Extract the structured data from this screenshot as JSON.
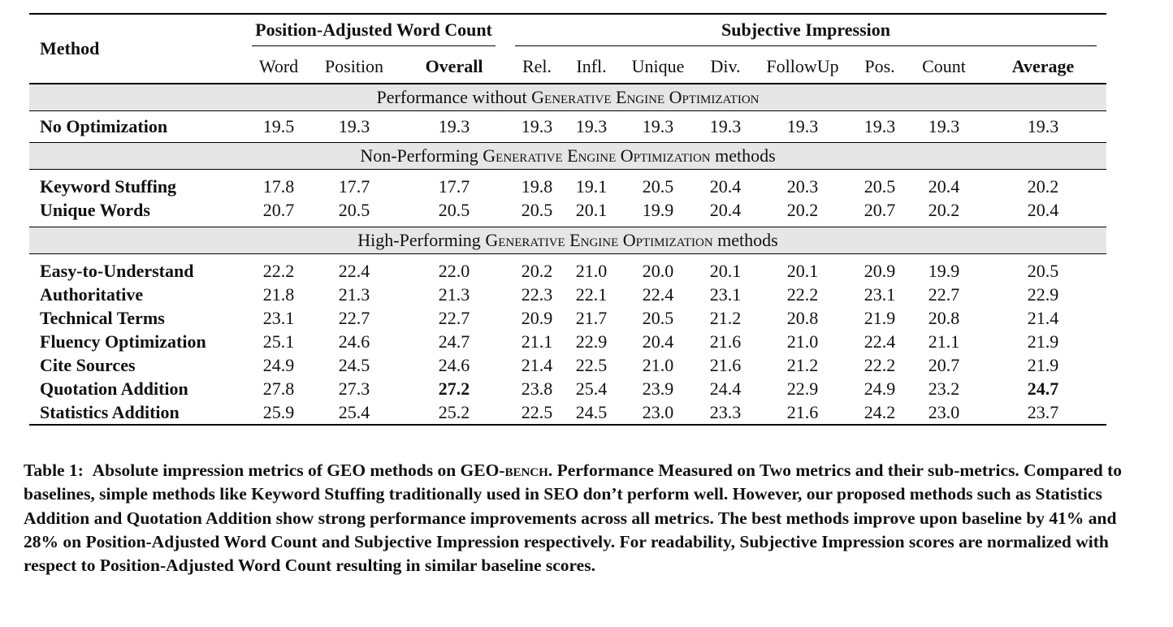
{
  "table": {
    "method_header": "Method",
    "groups": {
      "pawc": "Position-Adjusted Word Count",
      "si": "Subjective Impression"
    },
    "columns": [
      "Word",
      "Position",
      "Overall",
      "Rel.",
      "Infl.",
      "Unique",
      "Div.",
      "FollowUp",
      "Pos.",
      "Count",
      "Average"
    ],
    "sections": [
      {
        "pre": "Performance without ",
        "geo": "Generative Engine Optimization",
        "post": "",
        "rows": [
          {
            "method": "No Optimization",
            "values": [
              "19.5",
              "19.3",
              "19.3",
              "19.3",
              "19.3",
              "19.3",
              "19.3",
              "19.3",
              "19.3",
              "19.3",
              "19.3"
            ]
          }
        ]
      },
      {
        "pre": "Non-Performing ",
        "geo": "Generative Engine Optimization",
        "post": " methods",
        "rows": [
          {
            "method": "Keyword Stuffing",
            "values": [
              "17.8",
              "17.7",
              "17.7",
              "19.8",
              "19.1",
              "20.5",
              "20.4",
              "20.3",
              "20.5",
              "20.4",
              "20.2"
            ]
          },
          {
            "method": "Unique Words",
            "values": [
              "20.7",
              "20.5",
              "20.5",
              "20.5",
              "20.1",
              "19.9",
              "20.4",
              "20.2",
              "20.7",
              "20.2",
              "20.4"
            ]
          }
        ]
      },
      {
        "pre": "High-Performing ",
        "geo": "Generative Engine Optimization",
        "post": " methods",
        "rows": [
          {
            "method": "Easy-to-Understand",
            "values": [
              "22.2",
              "22.4",
              "22.0",
              "20.2",
              "21.0",
              "20.0",
              "20.1",
              "20.1",
              "20.9",
              "19.9",
              "20.5"
            ]
          },
          {
            "method": "Authoritative",
            "values": [
              "21.8",
              "21.3",
              "21.3",
              "22.3",
              "22.1",
              "22.4",
              "23.1",
              "22.2",
              "23.1",
              "22.7",
              "22.9"
            ]
          },
          {
            "method": "Technical Terms",
            "values": [
              "23.1",
              "22.7",
              "22.7",
              "20.9",
              "21.7",
              "20.5",
              "21.2",
              "20.8",
              "21.9",
              "20.8",
              "21.4"
            ]
          },
          {
            "method": "Fluency Optimization",
            "values": [
              "25.1",
              "24.6",
              "24.7",
              "21.1",
              "22.9",
              "20.4",
              "21.6",
              "21.0",
              "22.4",
              "21.1",
              "21.9"
            ]
          },
          {
            "method": "Cite Sources",
            "values": [
              "24.9",
              "24.5",
              "24.6",
              "21.4",
              "22.5",
              "21.0",
              "21.6",
              "21.2",
              "22.2",
              "20.7",
              "21.9"
            ]
          },
          {
            "method": "Quotation Addition",
            "values": [
              "27.8",
              "27.3",
              "27.2",
              "23.8",
              "25.4",
              "23.9",
              "24.4",
              "22.9",
              "24.9",
              "23.2",
              "24.7"
            ]
          },
          {
            "method": "Statistics Addition",
            "values": [
              "25.9",
              "25.4",
              "25.2",
              "22.5",
              "24.5",
              "23.0",
              "23.3",
              "21.6",
              "24.2",
              "23.0",
              "23.7"
            ]
          }
        ]
      }
    ]
  },
  "caption": {
    "label": "Table 1:",
    "part1": "Absolute impression metrics of GEO methods on GEO-",
    "bench": "bench",
    "part2": ". Performance Measured on Two metrics and their sub-metrics. Compared to baselines, simple methods like Keyword Stuffing traditionally used in SEO don’t perform well. However, our proposed methods such as Statistics Addition and Quotation Addition show strong performance improvements across all metrics. The best methods improve upon baseline by 41% and 28% on Position-Adjusted Word Count and Subjective Impression respectively. For readability, Subjective Impression scores are normalized with respect to Position-Adjusted Word Count resulting in similar baseline scores."
  }
}
